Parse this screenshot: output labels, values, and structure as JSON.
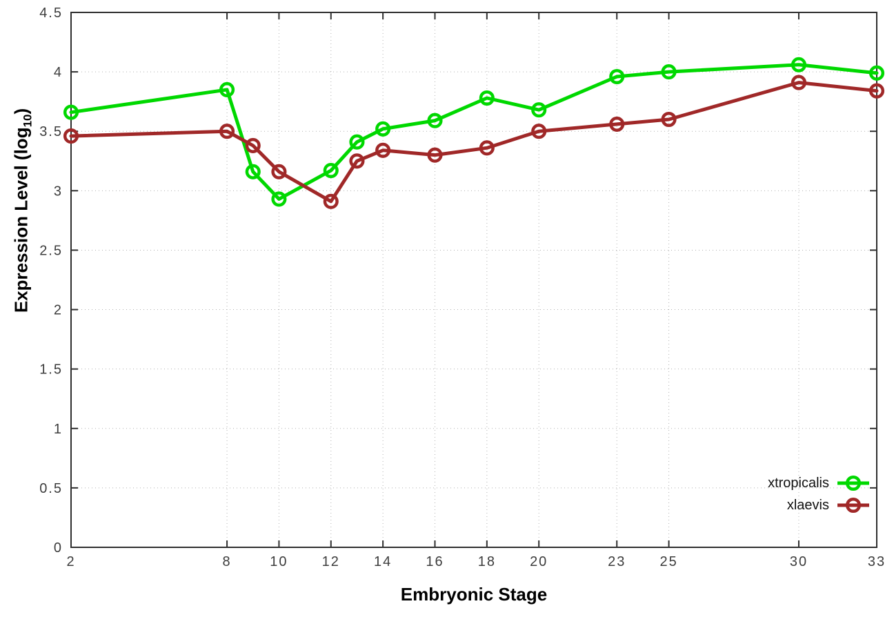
{
  "style": {
    "background": "#ffffff",
    "border_color": "#2e2e2e",
    "grid_color": "#b0b0b0",
    "tick_label_color": "#3c3c3c",
    "axis_label_color": "#000000"
  },
  "chart_data": {
    "type": "line",
    "title": "",
    "xlabel": "Embryonic Stage",
    "ylabel_prefix": "Expression Level (log",
    "ylabel_sub": "10",
    "ylabel_suffix": ")",
    "xlim": [
      2,
      33
    ],
    "ylim": [
      0,
      4.5
    ],
    "grid": true,
    "grid_style": "dotted",
    "legend_position": "bottom-right",
    "marker": "open-circle",
    "x": [
      2,
      8,
      9,
      10,
      12,
      13,
      14,
      16,
      18,
      20,
      23,
      25,
      30,
      33
    ],
    "xticks": [
      2,
      8,
      10,
      12,
      14,
      16,
      18,
      20,
      23,
      25,
      30,
      33
    ],
    "yticks": [
      0,
      0.5,
      1,
      1.5,
      2,
      2.5,
      3,
      3.5,
      4,
      4.5
    ],
    "series": [
      {
        "name": "xtropicalis",
        "color": "#00d800",
        "values": [
          3.66,
          3.85,
          3.16,
          2.93,
          3.17,
          3.41,
          3.52,
          3.59,
          3.78,
          3.68,
          3.96,
          4.0,
          4.06,
          3.99
        ]
      },
      {
        "name": "xlaevis",
        "color": "#a02828",
        "values": [
          3.46,
          3.5,
          3.38,
          3.16,
          2.91,
          3.25,
          3.34,
          3.3,
          3.36,
          3.5,
          3.56,
          3.6,
          3.91,
          3.84
        ]
      }
    ]
  }
}
